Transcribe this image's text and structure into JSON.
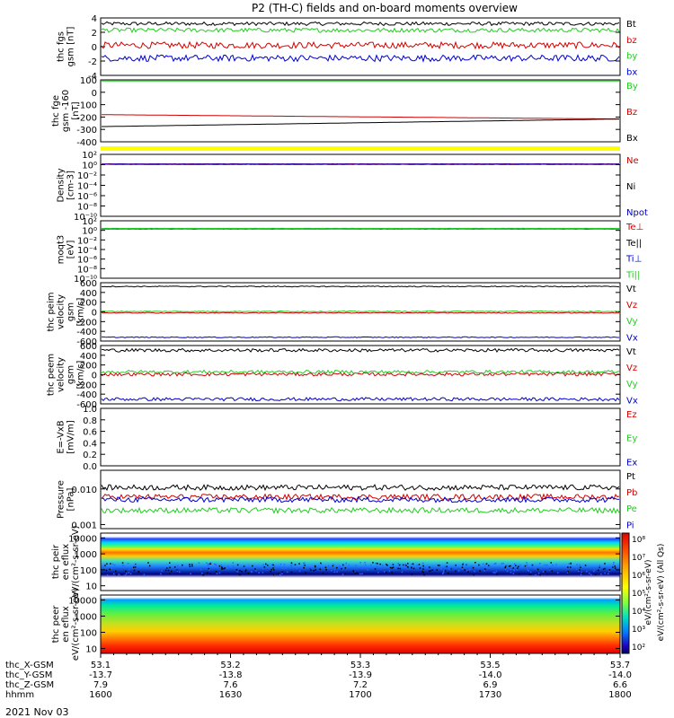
{
  "title": "P2 (TH-C) fields and on-board moments overview",
  "date": "2021 Nov 03",
  "colors": {
    "black": "#000000",
    "red": "#d00000",
    "green": "#22cc22",
    "blue": "#0000cc",
    "yellow": "#ffff00"
  },
  "colorbar": {
    "ticks": [
      "10⁸",
      "10⁷",
      "10⁶",
      "10⁵",
      "10⁴",
      "10³",
      "10²"
    ],
    "label1": "eV/(cm²-s-sr-eV)",
    "label2": "eV/(cm²-s-sr-eV) (All Qs)"
  },
  "chart_data": [
    {
      "type": "line",
      "ylabel": "thc fgs gsm [nT]",
      "ylim": [
        -4,
        4
      ],
      "yticks": [
        "4",
        "2",
        "0",
        "-2",
        "-4"
      ],
      "series": [
        {
          "name": "Bt",
          "mean": 3.2,
          "noise": 0.25
        },
        {
          "name": "bz",
          "mean": 0.2,
          "noise": 0.45
        },
        {
          "name": "by",
          "mean": 2.3,
          "noise": 0.3
        },
        {
          "name": "bx",
          "mean": -1.6,
          "noise": 0.45
        }
      ]
    },
    {
      "type": "line",
      "ylabel": "thc fge gsm -160 [nT]",
      "ylim": [
        -460,
        110
      ],
      "yticks": [
        "100",
        "0",
        "-100",
        "-200",
        "-300",
        "-400"
      ],
      "series": [
        {
          "name": "By",
          "start": 100,
          "end": 100
        },
        {
          "name": "Bz",
          "start": -210,
          "end": -250
        },
        {
          "name": "Bx",
          "start": -320,
          "end": -250
        }
      ]
    },
    {
      "type": "flag",
      "values": [
        "yellow"
      ]
    },
    {
      "type": "line",
      "ylabel": "Density [cm-3]",
      "scale": "log",
      "ylim": [
        -11,
        2
      ],
      "yticks": [
        "10²",
        "10⁰",
        "10⁻²",
        "10⁻⁴",
        "10⁻⁶",
        "10⁻⁸",
        "10⁻¹⁰"
      ],
      "series": [
        {
          "name": "Ne",
          "value": 1.0
        },
        {
          "name": "Ni",
          "value": 0.8
        },
        {
          "name": "Npot",
          "value": 0.9
        }
      ]
    },
    {
      "type": "line",
      "ylabel": "moqt3 [eV]",
      "scale": "log",
      "ylim": [
        -11,
        2
      ],
      "yticks": [
        "10²",
        "10⁰",
        "10⁻²",
        "10⁻⁴",
        "10⁻⁶",
        "10⁻⁸",
        "10⁻¹⁰"
      ],
      "series": [
        {
          "name": "Te⊥",
          "value": 1.6
        },
        {
          "name": "Te||",
          "value": 1.5
        },
        {
          "name": "Ti⊥",
          "value": 1.8
        },
        {
          "name": "Ti||",
          "value": 1.9
        }
      ]
    },
    {
      "type": "line",
      "ylabel": "thc peim velocity gsm [km/s]",
      "ylim": [
        -620,
        620
      ],
      "yticks": [
        "600",
        "400",
        "200",
        "0",
        "-200",
        "-400",
        "-600"
      ],
      "series": [
        {
          "name": "Vt",
          "mean": 540
        },
        {
          "name": "Vz",
          "mean": -20
        },
        {
          "name": "Vy",
          "mean": 10
        },
        {
          "name": "Vx",
          "mean": -540
        }
      ]
    },
    {
      "type": "line",
      "ylabel": "thc peem velocity gsm [km/s]",
      "ylim": [
        -620,
        620
      ],
      "yticks": [
        "600",
        "400",
        "200",
        "0",
        "-200",
        "-400",
        "-600"
      ],
      "series": [
        {
          "name": "Vt",
          "mean": 520
        },
        {
          "name": "Vz",
          "mean": 10
        },
        {
          "name": "Vy",
          "mean": 60
        },
        {
          "name": "Vx",
          "mean": -520
        }
      ]
    },
    {
      "type": "line",
      "ylabel": "E=-VxB [mV/m]",
      "ylim": [
        0,
        1
      ],
      "yticks": [
        "1.0",
        "0.8",
        "0.6",
        "0.4",
        "0.2",
        "0.0"
      ],
      "series": [
        {
          "name": "Ez"
        },
        {
          "name": "Ey"
        },
        {
          "name": "Ex"
        }
      ]
    },
    {
      "type": "line",
      "ylabel": "Pressure [nPa]",
      "scale": "log",
      "ylim": [
        -3,
        -1.75
      ],
      "yticks": [
        "0.010",
        "0.001"
      ],
      "series": [
        {
          "name": "Pt",
          "value": 0.011
        },
        {
          "name": "Pb",
          "value": 0.006
        },
        {
          "name": "Pe",
          "value": 0.0025
        },
        {
          "name": "Pi",
          "value": 0.005
        }
      ]
    },
    {
      "type": "heatmap",
      "ylabel": "thc peir en eflux eV/(cm²-s-sr-eV)",
      "scale": "log",
      "ylim": [
        5,
        20000
      ],
      "yticks": [
        "10000",
        "1000",
        "100",
        "10"
      ]
    },
    {
      "type": "heatmap",
      "ylabel": "thc peer en eflux eV/(cm²-s-sr-eV)",
      "scale": "log",
      "ylim": [
        5,
        20000
      ],
      "yticks": [
        "10000",
        "1000",
        "100",
        "10"
      ]
    }
  ],
  "x_axis": {
    "range": [
      1600,
      1800
    ],
    "tick_rows": [
      {
        "label": "thc_X-GSM",
        "values": [
          "53.1",
          "53.2",
          "53.3",
          "53.5",
          "53.7"
        ]
      },
      {
        "label": "thc_Y-GSM",
        "values": [
          "-13.7",
          "-13.8",
          "-13.9",
          "-14.0",
          "-14.0"
        ]
      },
      {
        "label": "thc_Z-GSM",
        "values": [
          "7.9",
          "7.6",
          "7.2",
          "6.9",
          "6.6"
        ]
      },
      {
        "label": "hhmm",
        "values": [
          "1600",
          "1630",
          "1700",
          "1730",
          "1800"
        ]
      }
    ]
  }
}
